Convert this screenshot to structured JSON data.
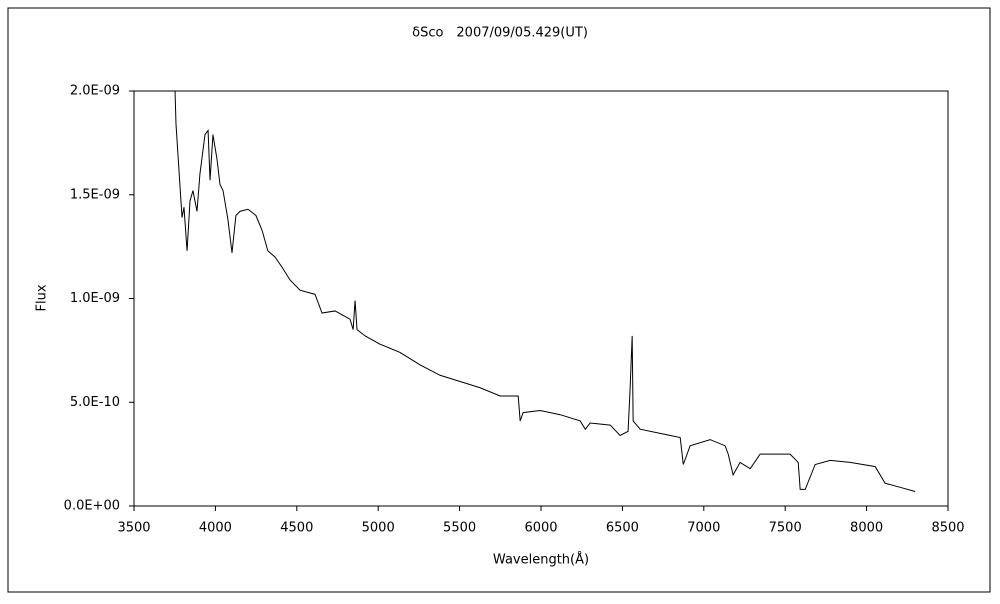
{
  "chart_data": {
    "type": "line",
    "title": "δSco　2007/09/05.429(UT)",
    "x_label": "Wavelength(Å)",
    "y_label": "Flux",
    "color": "#000000",
    "xlim": [
      3500,
      8500
    ],
    "xticks": [
      3500,
      4000,
      4500,
      5000,
      5500,
      6000,
      6500,
      7000,
      7500,
      8000,
      8500
    ],
    "ylim": [
      0,
      2e-09
    ],
    "yticks": [
      {
        "value": 0,
        "label": "0.0E+00"
      },
      {
        "value": 5e-10,
        "label": "5.0E-10"
      },
      {
        "value": 1e-09,
        "label": "1.0E-09"
      },
      {
        "value": 1.5e-09,
        "label": "1.5E-09"
      },
      {
        "value": 2e-09,
        "label": "2.0E-09"
      }
    ],
    "grid": false,
    "x": [
      3752,
      3758,
      3795,
      3807,
      3826,
      3844,
      3862,
      3887,
      3905,
      3936,
      3955,
      3967,
      3985,
      4010,
      4028,
      4047,
      4077,
      4102,
      4126,
      4151,
      4200,
      4249,
      4286,
      4322,
      4366,
      4410,
      4458,
      4520,
      4612,
      4655,
      4735,
      4827,
      4846,
      4858,
      4870,
      4919,
      5011,
      5134,
      5258,
      5380,
      5503,
      5626,
      5749,
      5860,
      5872,
      5890,
      5995,
      6118,
      6241,
      6272,
      6302,
      6425,
      6486,
      6535,
      6547,
      6560,
      6566,
      6609,
      6732,
      6855,
      6874,
      6916,
      7039,
      7131,
      7150,
      7180,
      7223,
      7285,
      7346,
      7530,
      7580,
      7592,
      7623,
      7684,
      7776,
      7899,
      8053,
      8113,
      8206,
      8298
    ],
    "values": [
      2e-09,
      1.84e-09,
      1.39e-09,
      1.44e-09,
      1.23e-09,
      1.47e-09,
      1.52e-09,
      1.42e-09,
      1.6e-09,
      1.79e-09,
      1.81e-09,
      1.57e-09,
      1.79e-09,
      1.67e-09,
      1.55e-09,
      1.52e-09,
      1.38e-09,
      1.22e-09,
      1.4e-09,
      1.42e-09,
      1.43e-09,
      1.4e-09,
      1.33e-09,
      1.23e-09,
      1.2e-09,
      1.15e-09,
      1.09e-09,
      1.04e-09,
      1.02e-09,
      9.3e-10,
      9.4e-10,
      9e-10,
      8.5e-10,
      9.9e-10,
      8.5e-10,
      8.2e-10,
      7.8e-10,
      7.4e-10,
      6.8e-10,
      6.3e-10,
      6e-10,
      5.7e-10,
      5.3e-10,
      5.3e-10,
      4.1e-10,
      4.5e-10,
      4.6e-10,
      4.4e-10,
      4.1e-10,
      3.7e-10,
      4e-10,
      3.9e-10,
      3.4e-10,
      3.6e-10,
      5.6e-10,
      8.2e-10,
      4.1e-10,
      3.7e-10,
      3.5e-10,
      3.3e-10,
      2e-10,
      2.9e-10,
      3.2e-10,
      2.9e-10,
      2.5e-10,
      1.5e-10,
      2.1e-10,
      1.8e-10,
      2.5e-10,
      2.5e-10,
      2.1e-10,
      8e-11,
      8e-11,
      2e-10,
      2.2e-10,
      2.1e-10,
      1.9e-10,
      1.1e-10,
      9e-11,
      7e-11
    ]
  }
}
